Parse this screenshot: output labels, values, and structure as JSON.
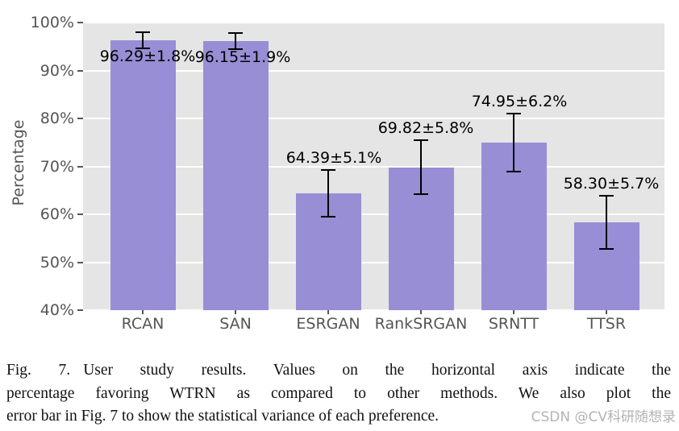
{
  "chart_data": {
    "type": "bar",
    "title": "",
    "xlabel": "",
    "ylabel": "Percentage",
    "ylim": [
      40,
      100
    ],
    "yticks": [
      100,
      90,
      80,
      70,
      60,
      50,
      40
    ],
    "ytick_labels": [
      "100%",
      "90%",
      "80%",
      "70%",
      "60%",
      "50%",
      "40%"
    ],
    "grid": true,
    "legend": "none",
    "panel_bg": "#e5e5e5",
    "grid_color": "#ffffff",
    "bar_color": "#988ed5",
    "error_color": "#000000",
    "tick_color": "#555555",
    "categories": [
      "RCAN",
      "SAN",
      "ESRGAN",
      "RankSRGAN",
      "SRNTT",
      "TTSR"
    ],
    "values": [
      96.29,
      96.15,
      64.39,
      69.82,
      74.95,
      58.3
    ],
    "errors": [
      1.8,
      1.9,
      5.1,
      5.8,
      6.2,
      5.7
    ],
    "bar_labels": [
      "96.29±1.8%",
      "96.15±1.9%",
      "64.39±5.1%",
      "69.82±5.8%",
      "74.95±6.2%",
      "58.30±5.7%"
    ],
    "label_pos": [
      "below-top",
      "below-top",
      "above-error",
      "above-error",
      "above-error",
      "above-error"
    ],
    "label_dx": [
      6,
      9,
      7,
      6,
      7,
      6
    ]
  },
  "caption": {
    "fig_label": "Fig. 7.",
    "line1": "User study results. Values on the horizontal axis indicate the",
    "line2": "percentage favoring WTRN as compared to other methods. We also plot the",
    "line3": "error bar in Fig. 7 to show the statistical variance of each preference."
  },
  "watermark": {
    "text": "CSDN @CV科研随想录"
  }
}
